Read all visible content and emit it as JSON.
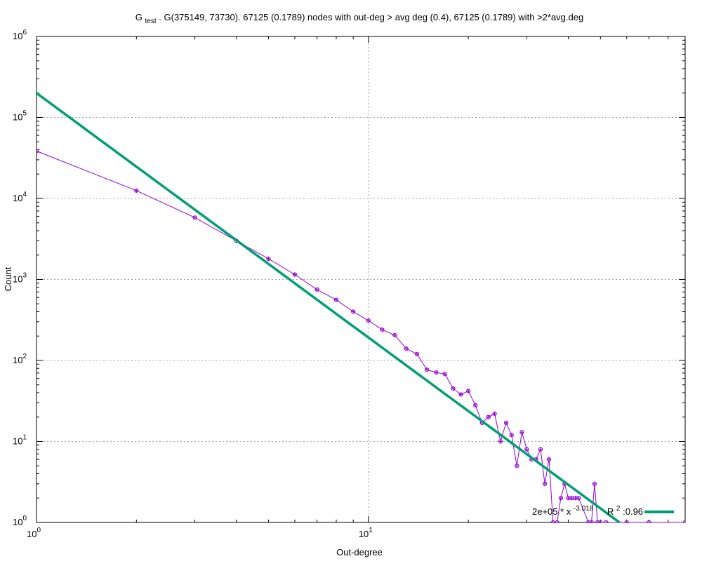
{
  "chart_data": {
    "type": "scatter",
    "title": {
      "prefix": "G",
      "subscript": "test",
      "rest": " . G(375149, 73730). 67125 (0.1789) nodes with out-deg > avg deg (0.4), 67125 (0.1789) with >2*avg.deg"
    },
    "xlabel": "Out-degree",
    "ylabel": "Count",
    "x_scale": "log",
    "y_scale": "log",
    "xlim": [
      1,
      90
    ],
    "ylim": [
      1,
      1000000
    ],
    "grid": true,
    "x_ticks": [
      {
        "value": 1,
        "base": "10",
        "exp": "0"
      },
      {
        "value": 10,
        "base": "10",
        "exp": "1"
      }
    ],
    "y_ticks": [
      {
        "value": 1,
        "base": "10",
        "exp": "0"
      },
      {
        "value": 10,
        "base": "10",
        "exp": "1"
      },
      {
        "value": 100,
        "base": "10",
        "exp": "2"
      },
      {
        "value": 1000,
        "base": "10",
        "exp": "3"
      },
      {
        "value": 10000,
        "base": "10",
        "exp": "4"
      },
      {
        "value": 100000,
        "base": "10",
        "exp": "5"
      },
      {
        "value": 1000000,
        "base": "10",
        "exp": "6"
      }
    ],
    "legend_placement": "bottom-right",
    "series": [
      {
        "color": "#9400d3",
        "marker": "circle-plus",
        "points": [
          [
            1,
            38500
          ],
          [
            2,
            12500
          ],
          [
            3,
            5800
          ],
          [
            4,
            3000
          ],
          [
            5,
            1800
          ],
          [
            6,
            1150
          ],
          [
            7,
            750
          ],
          [
            8,
            560
          ],
          [
            9,
            400
          ],
          [
            10,
            310
          ],
          [
            11,
            240
          ],
          [
            12,
            205
          ],
          [
            13,
            140
          ],
          [
            14,
            120
          ],
          [
            15,
            77
          ],
          [
            16,
            71
          ],
          [
            17,
            68
          ],
          [
            18,
            45
          ],
          [
            19,
            38
          ],
          [
            20,
            42
          ],
          [
            21,
            28
          ],
          [
            22,
            17
          ],
          [
            23,
            20
          ],
          [
            24,
            22
          ],
          [
            25,
            10
          ],
          [
            26,
            17
          ],
          [
            27,
            12
          ],
          [
            28,
            5
          ],
          [
            29,
            13
          ],
          [
            30,
            8
          ],
          [
            31,
            6
          ],
          [
            32,
            6
          ],
          [
            33,
            8
          ],
          [
            34,
            3
          ],
          [
            35,
            6
          ],
          [
            36,
            1
          ],
          [
            37,
            1
          ],
          [
            38,
            2
          ],
          [
            39,
            3
          ],
          [
            40,
            2
          ],
          [
            41,
            2
          ],
          [
            42,
            2
          ],
          [
            43,
            2
          ],
          [
            46,
            1
          ],
          [
            47,
            1
          ],
          [
            48,
            3
          ],
          [
            49,
            1
          ],
          [
            50,
            1
          ],
          [
            52,
            1
          ],
          [
            60,
            1
          ],
          [
            70,
            1
          ],
          [
            90,
            1
          ]
        ]
      },
      {
        "color": "#009e73",
        "legend": {
          "coef": "2e+05 * x",
          "exponent": "-3.018",
          "r_label": "R",
          "r_exp": "2",
          "r_value": ":0.96"
        },
        "fit": {
          "coefficient": 200000,
          "exponent": -3.018
        }
      }
    ]
  }
}
